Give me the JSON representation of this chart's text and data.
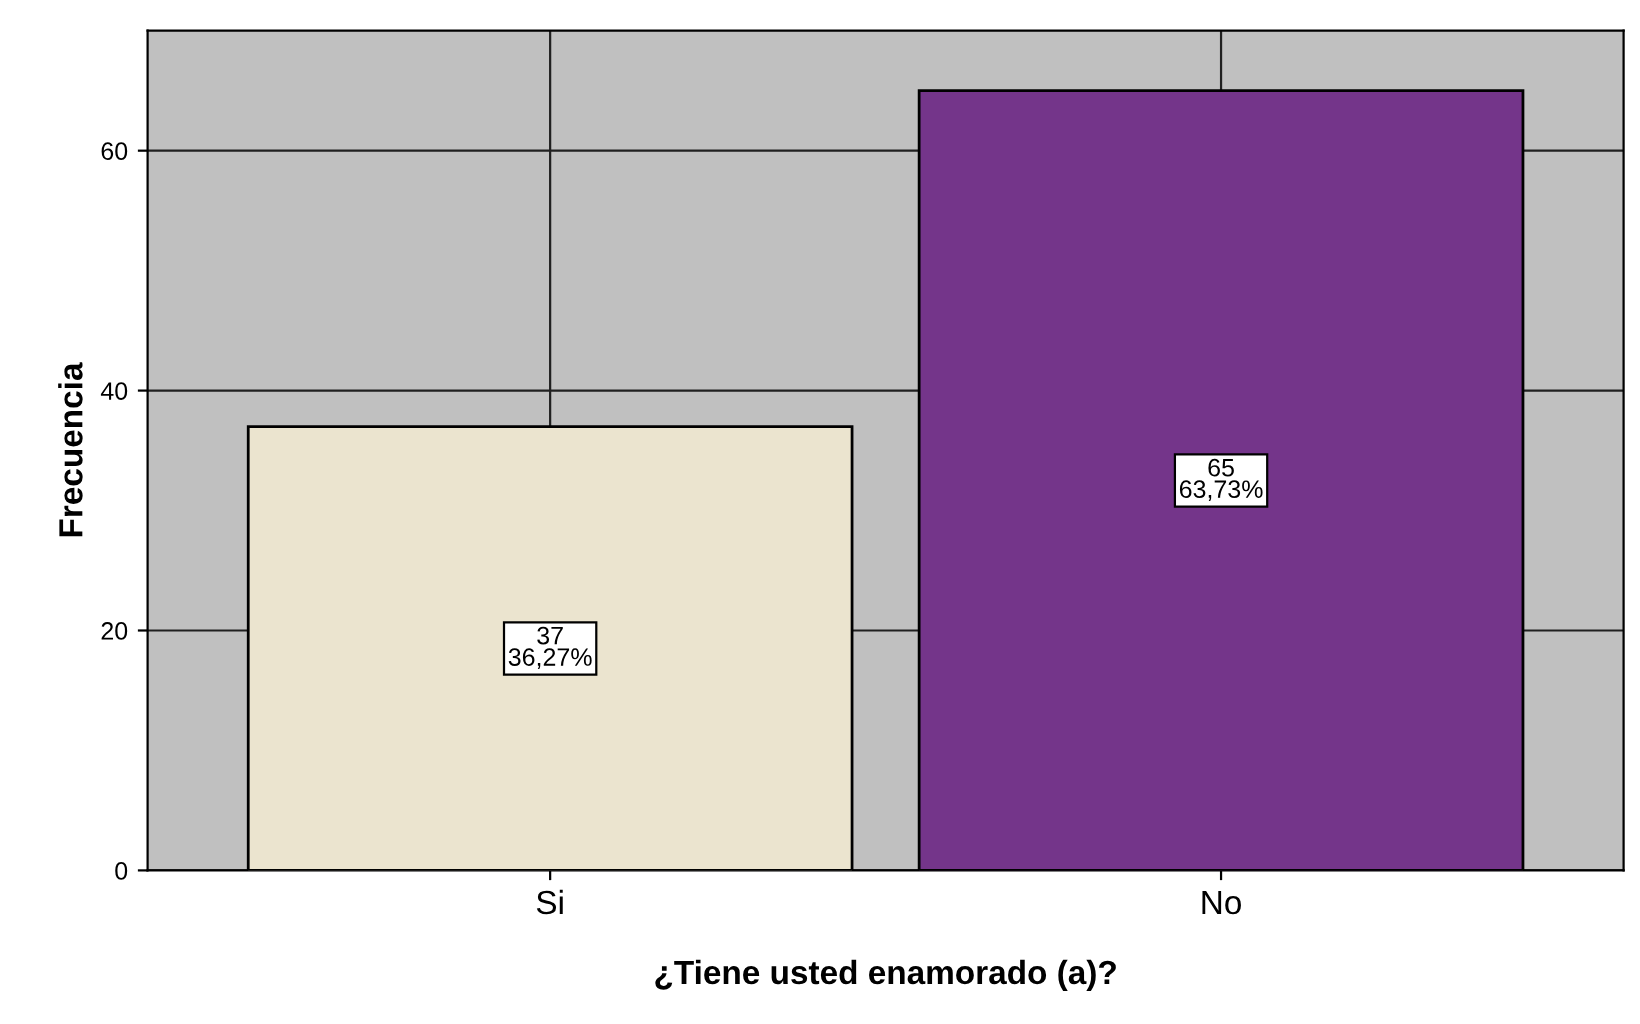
{
  "chart_data": {
    "type": "bar",
    "xlabel": "¿Tiene usted enamorado (a)?",
    "ylabel": "Frecuencia",
    "categories": [
      "Si",
      "No"
    ],
    "values": [
      37,
      65
    ],
    "colors": [
      "#ebe4cf",
      "#74358a"
    ],
    "value_labels": [
      "37\n36,27%",
      "65\n63,73%"
    ],
    "ylim": [
      0,
      70
    ],
    "yticks": [
      0,
      20,
      40,
      60
    ],
    "grid": true
  }
}
